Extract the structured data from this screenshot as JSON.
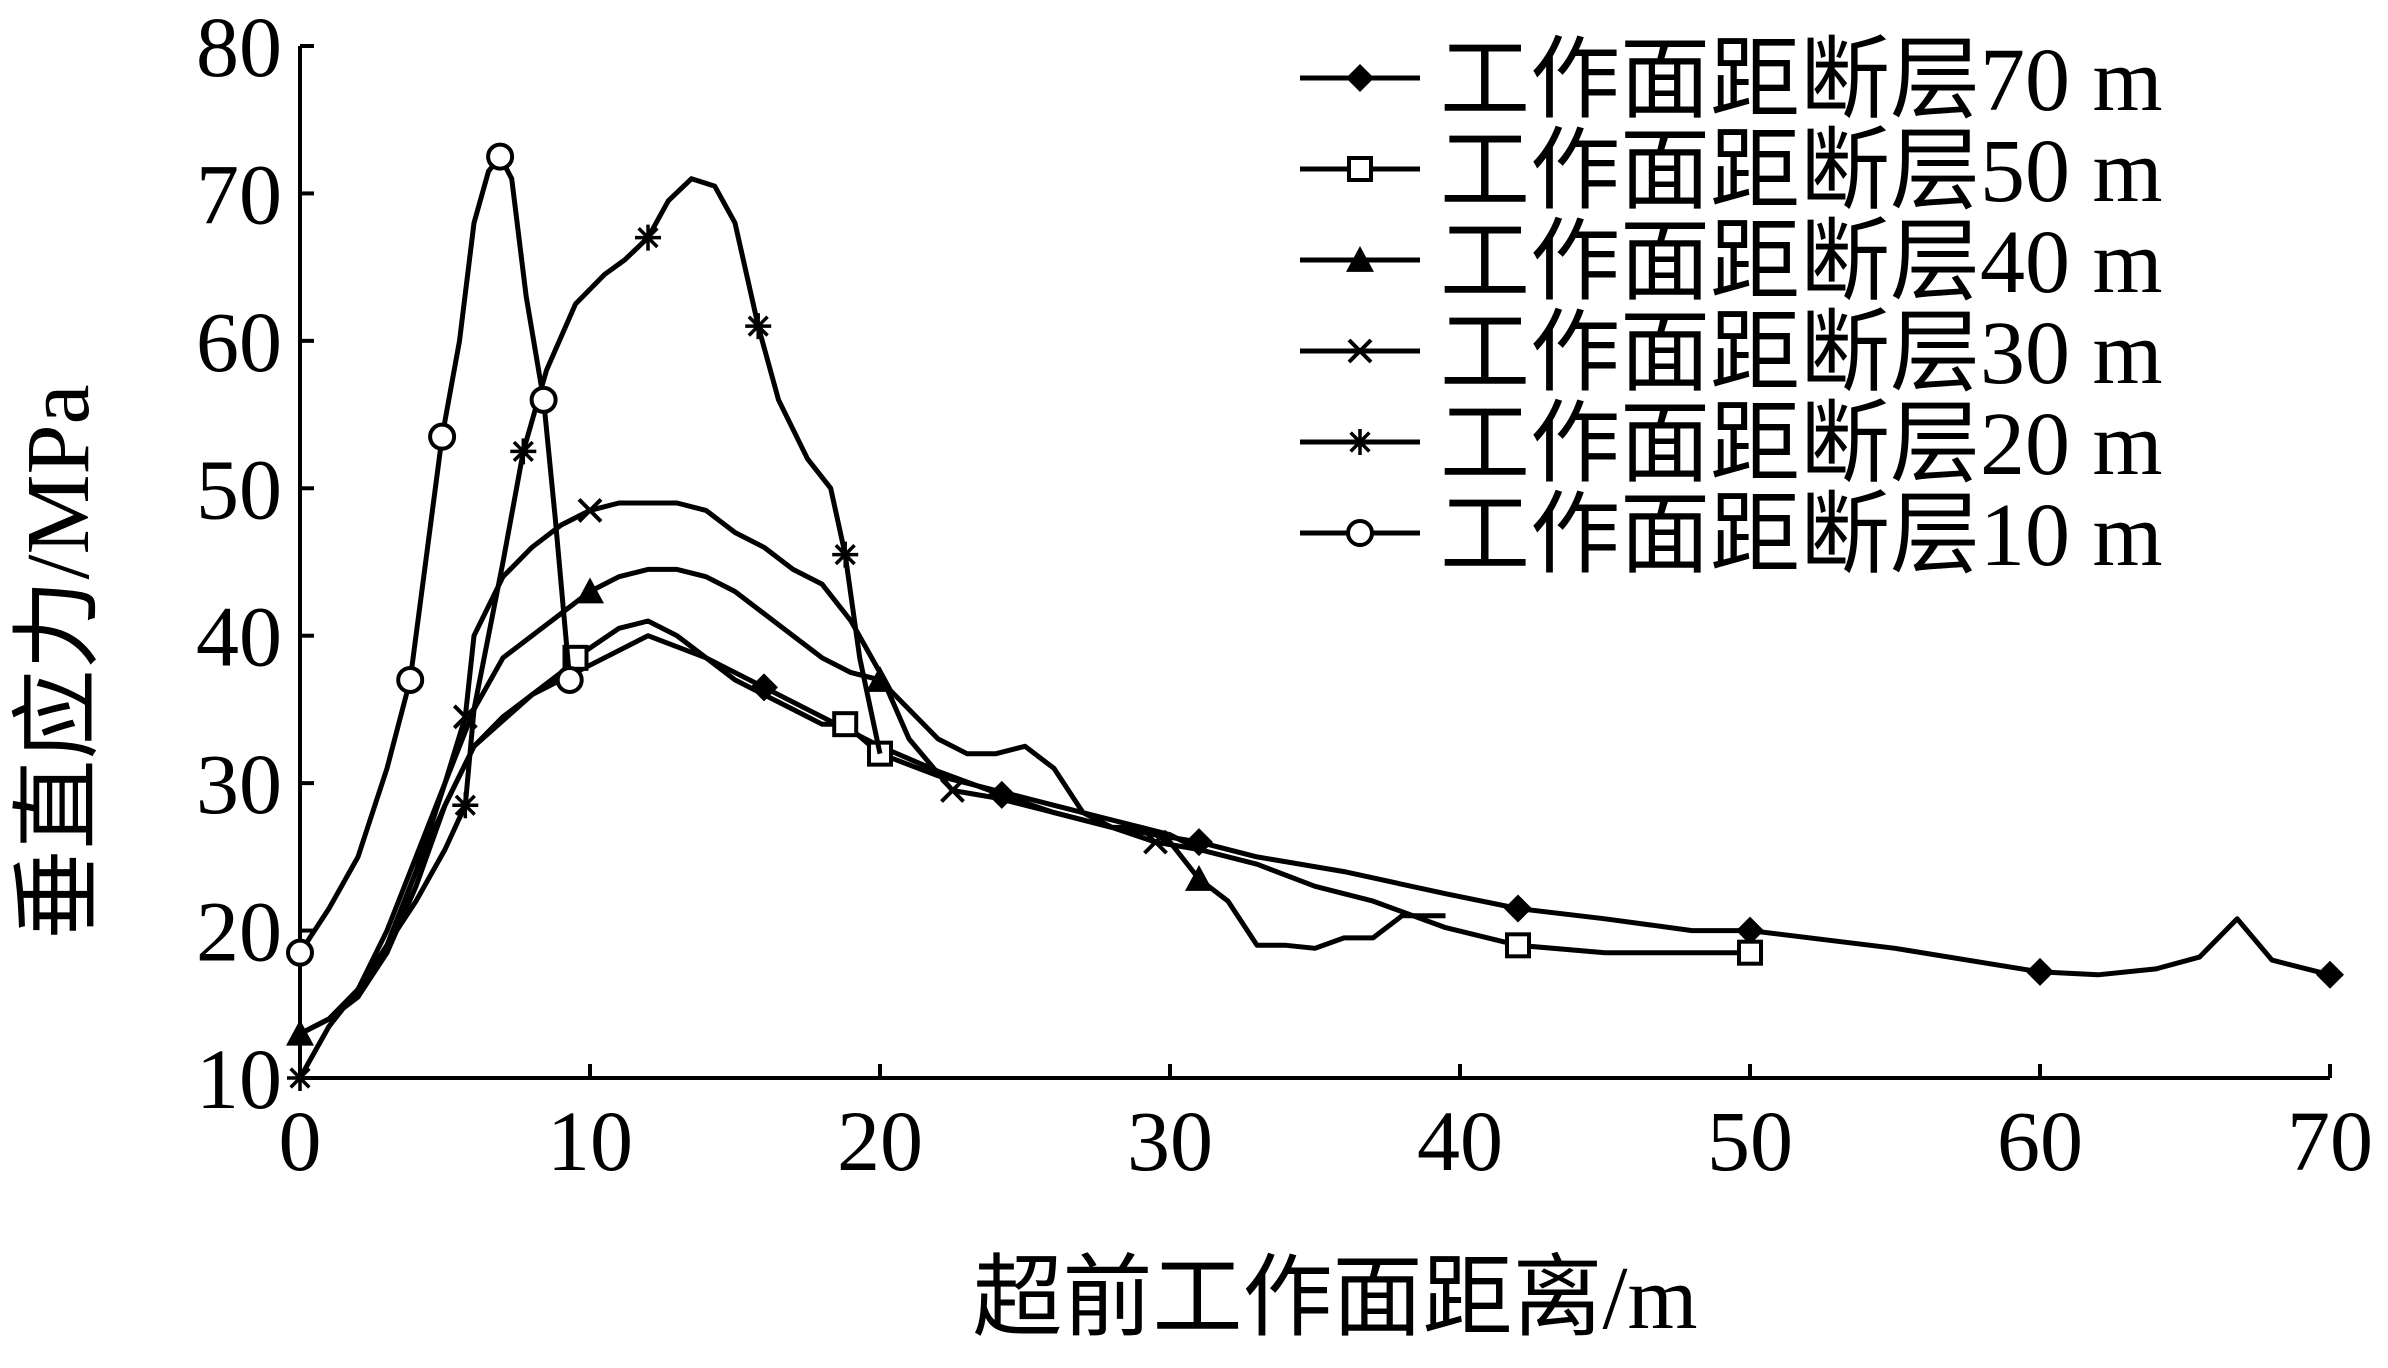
{
  "chart_data": {
    "type": "line",
    "xlabel": "超前工作面距离/m",
    "ylabel": "垂直应力/MPa",
    "xlim": [
      0,
      70
    ],
    "ylim": [
      10,
      80
    ],
    "xticks": [
      "0",
      "10",
      "20",
      "30",
      "40",
      "50",
      "60",
      "70"
    ],
    "yticks": [
      "10",
      "20",
      "30",
      "40",
      "50",
      "60",
      "70",
      "80"
    ],
    "grid": false,
    "legend_position": "top-right",
    "series": [
      {
        "name": "工作面距断层70 m",
        "marker": "filled-diamond",
        "x": [
          0,
          1,
          2,
          3,
          4,
          5,
          6,
          8,
          10,
          12,
          14,
          16,
          18,
          20,
          22,
          24.2,
          26,
          28,
          31,
          33,
          36,
          39.5,
          42,
          45,
          48,
          50,
          55,
          60,
          62,
          64,
          65.5,
          66.8,
          68,
          70
        ],
        "y": [
          13,
          14,
          16,
          19,
          24,
          28.5,
          32.5,
          36,
          38,
          40,
          38.5,
          36.5,
          34.5,
          32.5,
          30.8,
          29.2,
          28,
          27,
          26,
          25,
          24,
          22.5,
          21.5,
          20.8,
          20,
          20,
          18.8,
          17.2,
          17,
          17.4,
          18.2,
          20.8,
          18,
          17
        ]
      },
      {
        "name": "工作面距断层50 m",
        "marker": "open-square",
        "x": [
          0,
          1,
          2,
          3,
          4,
          5,
          6,
          7,
          8,
          9,
          9.5,
          11,
          12,
          13,
          14,
          15,
          16,
          17,
          18,
          18.8,
          20,
          22,
          24,
          26,
          28,
          30,
          31,
          33,
          35,
          37,
          39.5,
          42,
          45,
          50
        ],
        "y": [
          13,
          14,
          15.5,
          18.5,
          23,
          28.5,
          32.5,
          34.5,
          36,
          37.5,
          38.5,
          40.5,
          41,
          40,
          38.5,
          37,
          36,
          35,
          34,
          34,
          32,
          30.5,
          29.5,
          28.5,
          27.5,
          26.5,
          25.5,
          24.5,
          23,
          22,
          20.2,
          19,
          18.5,
          18.5
        ]
      },
      {
        "name": "工作面距断层40 m",
        "marker": "filled-triangle",
        "x": [
          0,
          1,
          2,
          3,
          4,
          5,
          6,
          7,
          8,
          9,
          10,
          11,
          12,
          13,
          14,
          15,
          16,
          17,
          18,
          19,
          20,
          21,
          22,
          23,
          24,
          25,
          26,
          27,
          28,
          29,
          30,
          31,
          32,
          33,
          34,
          35,
          36,
          37,
          38,
          39.5
        ],
        "y": [
          13,
          14,
          15.5,
          19,
          24,
          30,
          35,
          38.5,
          40,
          41.5,
          43,
          44,
          44.5,
          44.5,
          44,
          43,
          41.5,
          40,
          38.5,
          37.5,
          37,
          35,
          33,
          32,
          32,
          32.5,
          31,
          28,
          27,
          27,
          26,
          23.5,
          22,
          19,
          19,
          18.8,
          19.5,
          19.5,
          21,
          21
        ]
      },
      {
        "name": "工作面距断层30 m",
        "marker": "x-cross",
        "x": [
          0,
          1,
          2,
          3,
          4,
          5,
          5.7,
          6,
          7,
          8,
          9,
          10,
          11,
          12,
          13,
          14,
          15,
          16,
          17,
          18,
          19,
          20,
          21,
          22.5,
          24,
          26,
          28,
          29.5,
          31
        ],
        "y": [
          13,
          14,
          16,
          20,
          25,
          30,
          34.5,
          40,
          44,
          46,
          47.5,
          48.5,
          49,
          49,
          49,
          48.5,
          47,
          46,
          44.5,
          43.5,
          41,
          37.5,
          33,
          29.5,
          29,
          28,
          27,
          26,
          25.5
        ]
      },
      {
        "name": "工作面距断层20 m",
        "marker": "asterisk",
        "x": [
          0,
          1,
          2,
          3,
          4,
          5,
          5.7,
          6,
          7,
          7.7,
          8.5,
          9.5,
          10.5,
          11.2,
          12,
          12.7,
          13.5,
          14.3,
          15,
          15.8,
          16.5,
          17.5,
          18.3,
          18.8,
          19.3,
          20
        ],
        "y": [
          10,
          13.5,
          16,
          19,
          22,
          25.5,
          28.5,
          35,
          45,
          52.5,
          58,
          62.5,
          64.5,
          65.5,
          67,
          69.5,
          71,
          70.5,
          68,
          61,
          56,
          52,
          50,
          45.5,
          38.5,
          32
        ]
      },
      {
        "name": "工作面距断层10 m",
        "marker": "open-circle",
        "x": [
          0,
          1,
          2,
          3,
          3.8,
          4.9,
          5.5,
          6,
          6.5,
          6.9,
          7.3,
          7.8,
          8.4,
          8.8,
          9.3
        ],
        "y": [
          18.5,
          21.5,
          25,
          31,
          37,
          53.5,
          60,
          68,
          71.5,
          72.5,
          71,
          63,
          56,
          48,
          37
        ]
      }
    ]
  }
}
